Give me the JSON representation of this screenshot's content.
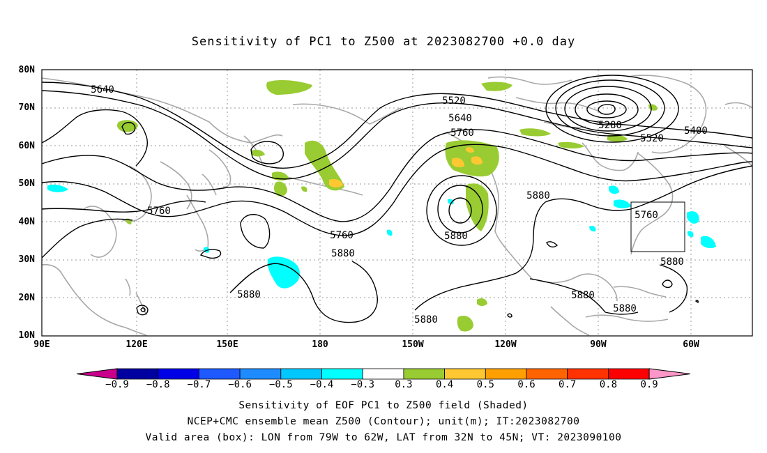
{
  "title": "Sensitivity of PC1 to Z500 at 2023082700 +0.0 day",
  "map": {
    "lat_ticks": [
      "80N",
      "70N",
      "60N",
      "50N",
      "40N",
      "30N",
      "20N",
      "10N"
    ],
    "lon_ticks": [
      "90E",
      "120E",
      "150E",
      "180",
      "150W",
      "120W",
      "90W",
      "60W"
    ],
    "contour_labels": [
      "5640",
      "5520",
      "5640",
      "5760",
      "5280",
      "5400",
      "5520",
      "5880",
      "5760",
      "5760",
      "5760",
      "5880",
      "5880",
      "5880",
      "5880",
      "5880",
      "5880"
    ],
    "valid_box": {
      "lon_range": "79W to 62W",
      "lat_range": "32N to 45N"
    }
  },
  "colorbar": {
    "labels": [
      "−0.9",
      "−0.8",
      "−0.7",
      "−0.6",
      "−0.5",
      "−0.4",
      "−0.3",
      "0.3",
      "0.4",
      "0.5",
      "0.6",
      "0.7",
      "0.8",
      "0.9"
    ],
    "colors": [
      "#0000a0",
      "#0000e6",
      "#1e5aff",
      "#1e8cff",
      "#00c8ff",
      "#00ffff",
      "#ffffff",
      "#99cc33",
      "#ffc832",
      "#ffa000",
      "#ff6400",
      "#ff3200",
      "#ff0000"
    ],
    "low_end_color": "#c8008c",
    "high_end_color": "#ff96c8"
  },
  "captions": {
    "line1": "Sensitivity of EOF PC1 to Z500 field (Shaded)",
    "line2": "NCEP+CMC ensemble mean Z500 (Contour); unit(m); IT:2023082700",
    "line3": "Valid area (box): LON from 79W to 62W, LAT from 32N to 45N; VT: 2023090100"
  }
}
